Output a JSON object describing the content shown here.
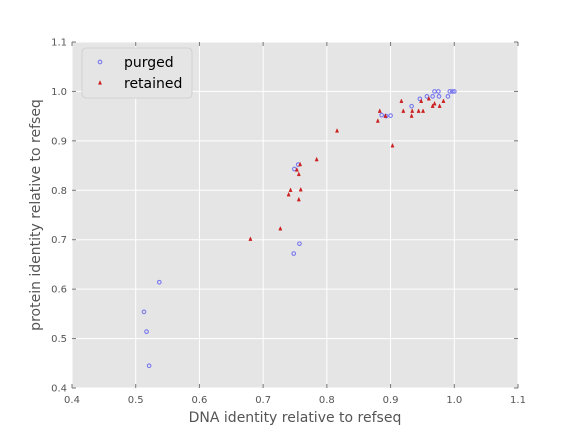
{
  "chart_data": {
    "type": "scatter",
    "title": "",
    "xlabel": "DNA identity relative to refseq",
    "ylabel": "protein identity relative to refseq",
    "xlim": [
      0.4,
      1.1
    ],
    "ylim": [
      0.4,
      1.1
    ],
    "xticks": [
      "0.4",
      "0.5",
      "0.6",
      "0.7",
      "0.8",
      "0.9",
      "1.0",
      "1.1"
    ],
    "yticks": [
      "0.4",
      "0.5",
      "0.6",
      "0.7",
      "0.8",
      "0.9",
      "1.0",
      "1.1"
    ],
    "grid": true,
    "background": "#e5e5e5",
    "legend_position": "top-left",
    "series": [
      {
        "name": "purged",
        "color": "#7777ee",
        "marker": "circle",
        "points": [
          [
            0.521,
            0.445
          ],
          [
            0.517,
            0.514
          ],
          [
            0.513,
            0.554
          ],
          [
            0.537,
            0.614
          ],
          [
            0.748,
            0.672
          ],
          [
            0.757,
            0.692
          ],
          [
            0.749,
            0.843
          ],
          [
            0.755,
            0.852
          ],
          [
            0.886,
            0.952
          ],
          [
            0.893,
            0.95
          ],
          [
            0.9,
            0.951
          ],
          [
            0.933,
            0.97
          ],
          [
            0.946,
            0.985
          ],
          [
            0.957,
            0.99
          ],
          [
            0.966,
            0.99
          ],
          [
            0.969,
            1.0
          ],
          [
            0.975,
            1.0
          ],
          [
            0.976,
            0.99
          ],
          [
            0.99,
            0.99
          ],
          [
            0.993,
            1.0
          ],
          [
            0.997,
            1.0
          ],
          [
            1.0,
            1.0
          ]
        ]
      },
      {
        "name": "retained",
        "color": "#cc2222",
        "marker": "triangle",
        "points": [
          [
            0.68,
            0.701
          ],
          [
            0.727,
            0.722
          ],
          [
            0.74,
            0.791
          ],
          [
            0.743,
            0.8
          ],
          [
            0.753,
            0.841
          ],
          [
            0.756,
            0.832
          ],
          [
            0.758,
            0.852
          ],
          [
            0.756,
            0.781
          ],
          [
            0.759,
            0.801
          ],
          [
            0.784,
            0.862
          ],
          [
            0.816,
            0.92
          ],
          [
            0.88,
            0.94
          ],
          [
            0.883,
            0.96
          ],
          [
            0.892,
            0.95
          ],
          [
            0.903,
            0.89
          ],
          [
            0.917,
            0.98
          ],
          [
            0.92,
            0.96
          ],
          [
            0.933,
            0.95
          ],
          [
            0.934,
            0.96
          ],
          [
            0.944,
            0.96
          ],
          [
            0.948,
            0.98
          ],
          [
            0.951,
            0.96
          ],
          [
            0.96,
            0.985
          ],
          [
            0.966,
            0.97
          ],
          [
            0.969,
            0.975
          ],
          [
            0.977,
            0.97
          ],
          [
            0.983,
            0.98
          ]
        ]
      }
    ]
  }
}
